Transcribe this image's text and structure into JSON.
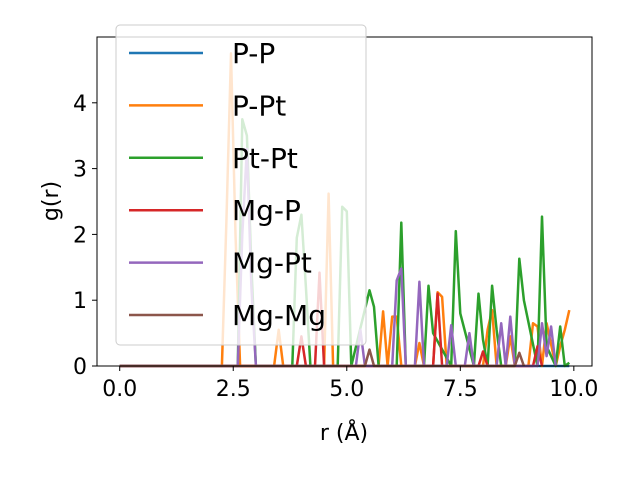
{
  "chart_data": {
    "type": "line",
    "xlabel": "r (Å)",
    "ylabel": "g(r)",
    "xlim": [
      -0.5,
      10.4
    ],
    "ylim": [
      0,
      5
    ],
    "xticks": [
      0.0,
      2.5,
      5.0,
      7.5,
      10.0
    ],
    "xtick_labels": [
      "0.0",
      "2.5",
      "5.0",
      "7.5",
      "10.0"
    ],
    "yticks": [
      0,
      1,
      2,
      3,
      4
    ],
    "ytick_labels": [
      "0",
      "1",
      "2",
      "3",
      "4"
    ],
    "grid": false,
    "legend_position": "upper-left",
    "series": [
      {
        "name": "P-P",
        "color": "#1f77b4",
        "x": [
          0,
          9.9
        ],
        "y": [
          0,
          0
        ]
      },
      {
        "name": "P-Pt",
        "color": "#ff7f0e",
        "x": [
          0,
          2.25,
          2.35,
          2.45,
          2.55,
          2.65,
          3.4,
          3.5,
          3.6,
          4.5,
          4.6,
          4.7,
          5.7,
          5.8,
          5.9,
          6.0,
          6.1,
          6.2,
          6.5,
          6.6,
          6.7,
          6.9,
          7.0,
          7.1,
          7.2,
          8.0,
          8.1,
          8.2,
          8.3,
          8.5,
          8.6,
          8.7,
          9.0,
          9.1,
          9.2,
          9.3,
          9.4,
          9.6,
          9.7,
          9.8,
          9.9
        ],
        "y": [
          0,
          0,
          2.2,
          4.75,
          2.0,
          0,
          0,
          0.55,
          0,
          0,
          2.62,
          0,
          0,
          0.83,
          0,
          0.75,
          0.75,
          0,
          0,
          0.35,
          0,
          0,
          1.12,
          1.05,
          0,
          0,
          0.55,
          0.85,
          0,
          0,
          0.45,
          0,
          0,
          0.65,
          0.6,
          0,
          0.65,
          0,
          0.3,
          0.55,
          0.85
        ]
      },
      {
        "name": "Pt-Pt",
        "color": "#2ca02c",
        "x": [
          0,
          2.6,
          2.7,
          2.8,
          2.9,
          3.0,
          3.8,
          3.9,
          4.0,
          4.1,
          4.2,
          4.8,
          4.9,
          5.0,
          5.1,
          5.5,
          5.6,
          5.7,
          6.1,
          6.2,
          6.3,
          6.7,
          6.8,
          6.9,
          7.3,
          7.4,
          7.5,
          7.8,
          7.9,
          8.0,
          8.1,
          8.2,
          8.3,
          8.4,
          8.7,
          8.8,
          8.9,
          9.2,
          9.3,
          9.4,
          9.6,
          9.7,
          9.8,
          9.9
        ],
        "y": [
          0,
          0,
          3.75,
          3.5,
          1.5,
          0,
          0,
          1.95,
          2.3,
          1.2,
          0,
          0,
          2.42,
          2.35,
          0,
          1.15,
          0.9,
          0,
          0,
          2.18,
          0,
          0,
          1.22,
          0.5,
          0,
          2.05,
          0.8,
          0,
          1.1,
          0.4,
          0,
          1.22,
          0.55,
          0,
          0,
          1.63,
          1.0,
          0,
          2.27,
          0.3,
          0,
          0.6,
          0,
          0.05
        ]
      },
      {
        "name": "Mg-P",
        "color": "#d62728",
        "x": [
          0,
          3.9,
          4.0,
          4.1,
          4.3,
          4.4,
          4.5,
          6.9,
          7.0,
          7.1,
          7.9,
          8.0,
          8.1,
          9.1,
          9.2,
          9.3
        ],
        "y": [
          0,
          0,
          0.45,
          0,
          0,
          1.42,
          0,
          0,
          1.1,
          0,
          0,
          0.22,
          0,
          0,
          0.3,
          0
        ]
      },
      {
        "name": "Mg-Pt",
        "color": "#9467bd",
        "x": [
          0,
          2.6,
          2.7,
          2.8,
          2.9,
          3.0,
          5.2,
          5.3,
          5.4,
          6.0,
          6.1,
          6.2,
          6.3,
          6.5,
          6.6,
          6.7,
          7.2,
          7.3,
          7.4,
          7.6,
          7.7,
          7.8,
          8.3,
          8.4,
          8.5,
          8.6,
          8.7,
          9.2,
          9.3,
          9.4,
          9.5,
          9.6
        ],
        "y": [
          0,
          0,
          2.0,
          3.3,
          1.2,
          0,
          0,
          0.55,
          0,
          0,
          1.3,
          1.48,
          0,
          0,
          1.28,
          0,
          0,
          0.62,
          0,
          0,
          0.5,
          0,
          0,
          0.65,
          0,
          0.75,
          0,
          0,
          0.65,
          0.15,
          0.6,
          0
        ]
      },
      {
        "name": "Mg-Mg",
        "color": "#8c564b",
        "x": [
          0,
          5.4,
          5.5,
          5.6,
          8.7,
          8.8,
          8.9
        ],
        "y": [
          0,
          0,
          0.25,
          0,
          0,
          0.2,
          0
        ]
      }
    ]
  }
}
